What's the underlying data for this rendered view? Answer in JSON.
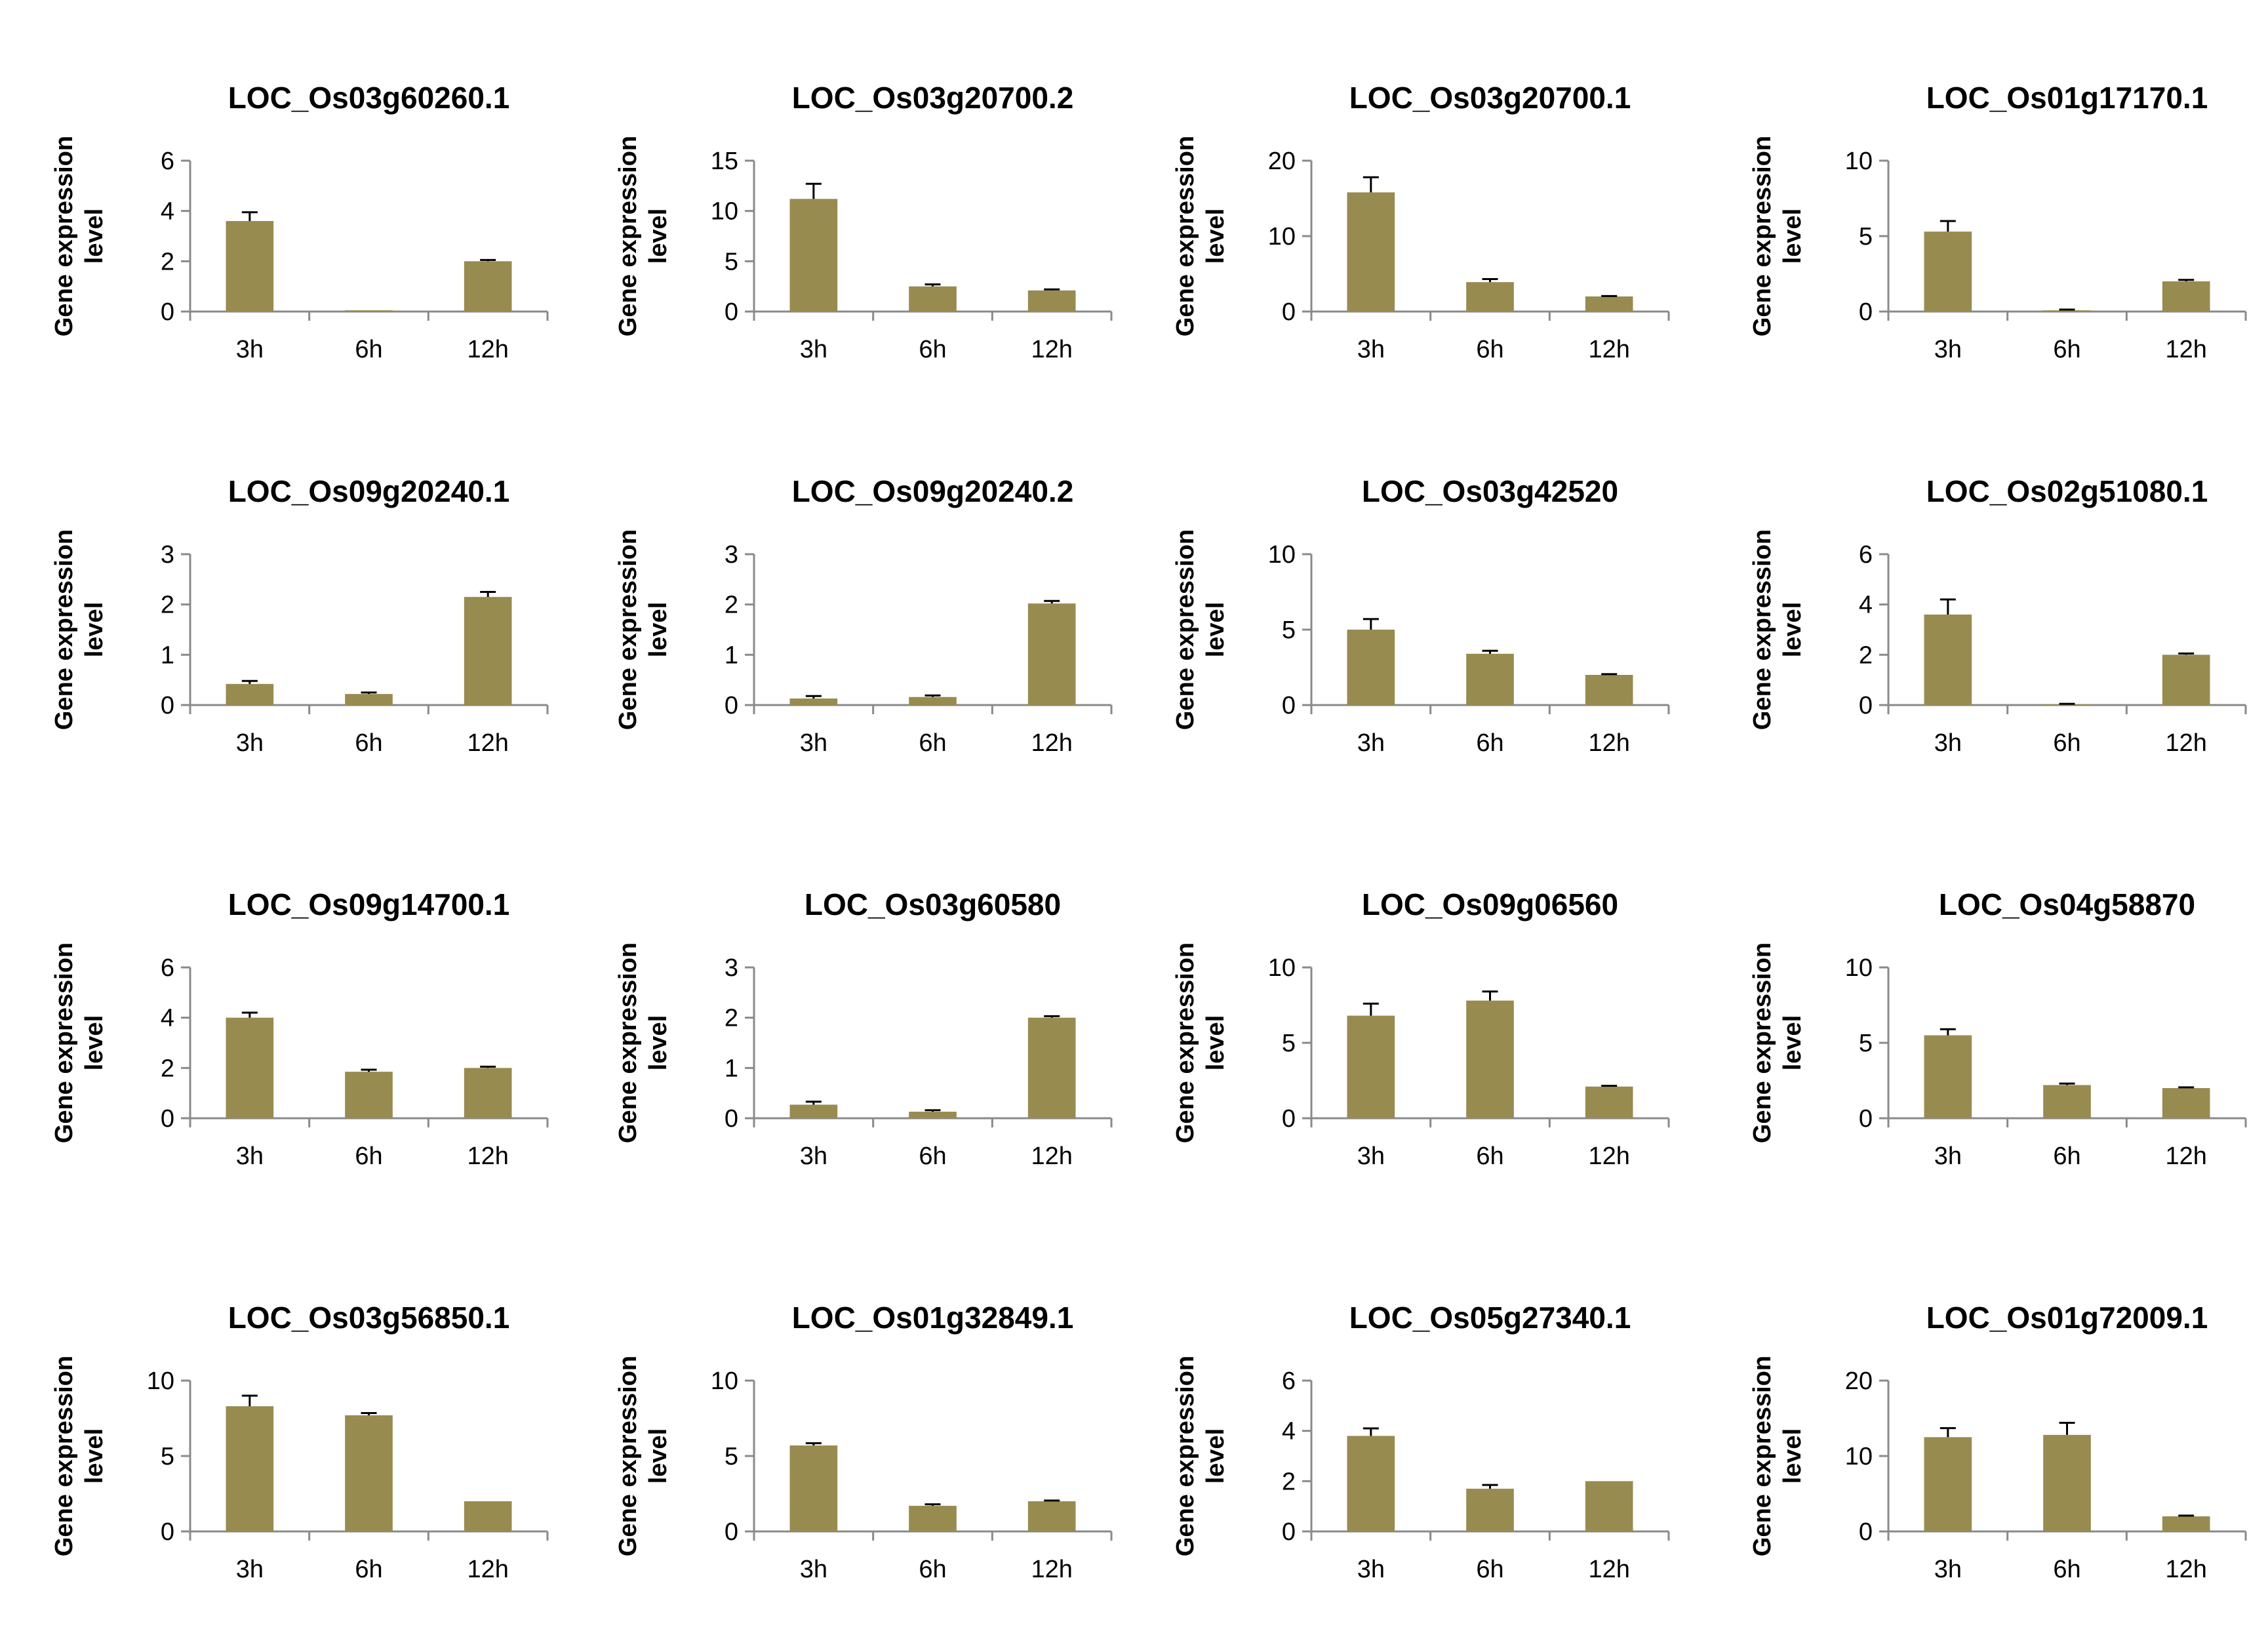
{
  "colors": {
    "bar": "#988B50",
    "axis": "#8a8a8a",
    "error": "#000000"
  },
  "chart_data": [
    {
      "type": "bar",
      "title": "LOC_Os03g60260.1",
      "ylabel": [
        "Gene expression",
        "level"
      ],
      "categories": [
        "3h",
        "6h",
        "12h"
      ],
      "values": [
        3.6,
        0.05,
        2.0
      ],
      "errors": [
        0.35,
        0,
        0.05
      ],
      "ylim": [
        0,
        6
      ],
      "yticks": [
        0,
        2,
        4,
        6
      ]
    },
    {
      "type": "bar",
      "title": "LOC_Os03g20700.2",
      "ylabel": [
        "Gene expression",
        "level"
      ],
      "categories": [
        "3h",
        "6h",
        "12h"
      ],
      "values": [
        11.2,
        2.5,
        2.1
      ],
      "errors": [
        1.5,
        0.2,
        0.1
      ],
      "ylim": [
        0,
        15
      ],
      "yticks": [
        0,
        5,
        10,
        15
      ]
    },
    {
      "type": "bar",
      "title": "LOC_Os03g20700.1",
      "ylabel": [
        "Gene expression",
        "level"
      ],
      "categories": [
        "3h",
        "6h",
        "12h"
      ],
      "values": [
        15.8,
        3.9,
        2.0
      ],
      "errors": [
        2.0,
        0.4,
        0.05
      ],
      "ylim": [
        0,
        20
      ],
      "yticks": [
        0,
        10,
        20
      ]
    },
    {
      "type": "bar",
      "title": "LOC_Os01g17170.1",
      "ylabel": [
        "Gene expression",
        "level"
      ],
      "categories": [
        "3h",
        "6h",
        "12h"
      ],
      "values": [
        5.3,
        0.08,
        2.0
      ],
      "errors": [
        0.7,
        0.05,
        0.1
      ],
      "ylim": [
        0,
        10
      ],
      "yticks": [
        0,
        5,
        10
      ]
    },
    {
      "type": "bar",
      "title": "LOC_Os09g20240.1",
      "ylabel": [
        "Gene expression",
        "level"
      ],
      "categories": [
        "3h",
        "6h",
        "12h"
      ],
      "values": [
        0.42,
        0.22,
        2.15
      ],
      "errors": [
        0.06,
        0.03,
        0.1
      ],
      "ylim": [
        0,
        3
      ],
      "yticks": [
        0,
        1,
        2,
        3
      ]
    },
    {
      "type": "bar",
      "title": "LOC_Os09g20240.2",
      "ylabel": [
        "Gene expression",
        "level"
      ],
      "categories": [
        "3h",
        "6h",
        "12h"
      ],
      "values": [
        0.13,
        0.16,
        2.02
      ],
      "errors": [
        0.05,
        0.03,
        0.05
      ],
      "ylim": [
        0,
        3
      ],
      "yticks": [
        0,
        1,
        2,
        3
      ]
    },
    {
      "type": "bar",
      "title": "LOC_Os03g42520",
      "ylabel": [
        "Gene expression",
        "level"
      ],
      "categories": [
        "3h",
        "6h",
        "12h"
      ],
      "values": [
        5.0,
        3.4,
        2.0
      ],
      "errors": [
        0.7,
        0.2,
        0.05
      ],
      "ylim": [
        0,
        10
      ],
      "yticks": [
        0,
        5,
        10
      ]
    },
    {
      "type": "bar",
      "title": "LOC_Os02g51080.1",
      "ylabel": [
        "Gene expression",
        "level"
      ],
      "categories": [
        "3h",
        "6h",
        "12h"
      ],
      "values": [
        3.6,
        0.03,
        2.0
      ],
      "errors": [
        0.6,
        0.02,
        0.05
      ],
      "ylim": [
        0,
        6
      ],
      "yticks": [
        0,
        2,
        4,
        6
      ]
    },
    {
      "type": "bar",
      "title": "LOC_Os09g14700.1",
      "ylabel": [
        "Gene expression",
        "level"
      ],
      "categories": [
        "3h",
        "6h",
        "12h"
      ],
      "values": [
        4.0,
        1.85,
        2.0
      ],
      "errors": [
        0.2,
        0.08,
        0.05
      ],
      "ylim": [
        0,
        6
      ],
      "yticks": [
        0,
        2,
        4,
        6
      ]
    },
    {
      "type": "bar",
      "title": "LOC_Os03g60580",
      "ylabel": [
        "Gene expression",
        "level"
      ],
      "categories": [
        "3h",
        "6h",
        "12h"
      ],
      "values": [
        0.27,
        0.13,
        2.0
      ],
      "errors": [
        0.06,
        0.03,
        0.03
      ],
      "ylim": [
        0,
        3
      ],
      "yticks": [
        0,
        1,
        2,
        3
      ]
    },
    {
      "type": "bar",
      "title": "LOC_Os09g06560",
      "ylabel": [
        "Gene expression",
        "level"
      ],
      "categories": [
        "3h",
        "6h",
        "12h"
      ],
      "values": [
        6.8,
        7.8,
        2.1
      ],
      "errors": [
        0.8,
        0.6,
        0.05
      ],
      "ylim": [
        0,
        10
      ],
      "yticks": [
        0,
        5,
        10
      ]
    },
    {
      "type": "bar",
      "title": "LOC_Os04g58870",
      "ylabel": [
        "Gene expression",
        "level"
      ],
      "categories": [
        "3h",
        "6h",
        "12h"
      ],
      "values": [
        5.5,
        2.2,
        2.0
      ],
      "errors": [
        0.4,
        0.1,
        0.05
      ],
      "ylim": [
        0,
        10
      ],
      "yticks": [
        0,
        5,
        10
      ]
    },
    {
      "type": "bar",
      "title": "LOC_Os03g56850.1",
      "ylabel": [
        "Gene expression",
        "level"
      ],
      "categories": [
        "3h",
        "6h",
        "12h"
      ],
      "values": [
        8.3,
        7.7,
        2.0
      ],
      "errors": [
        0.7,
        0.15,
        0.0
      ],
      "ylim": [
        0,
        10
      ],
      "yticks": [
        0,
        5,
        10
      ]
    },
    {
      "type": "bar",
      "title": "LOC_Os01g32849.1",
      "ylabel": [
        "Gene expression",
        "level"
      ],
      "categories": [
        "3h",
        "6h",
        "12h"
      ],
      "values": [
        5.7,
        1.7,
        2.0
      ],
      "errors": [
        0.15,
        0.1,
        0.05
      ],
      "ylim": [
        0,
        10
      ],
      "yticks": [
        0,
        5,
        10
      ]
    },
    {
      "type": "bar",
      "title": "LOC_Os05g27340.1",
      "ylabel": [
        "Gene expression",
        "level"
      ],
      "categories": [
        "3h",
        "6h",
        "12h"
      ],
      "values": [
        3.8,
        1.7,
        2.0
      ],
      "errors": [
        0.3,
        0.15,
        0.0
      ],
      "ylim": [
        0,
        6
      ],
      "yticks": [
        0,
        2,
        4,
        6
      ]
    },
    {
      "type": "bar",
      "title": "LOC_Os01g72009.1",
      "ylabel": [
        "Gene expression",
        "level"
      ],
      "categories": [
        "3h",
        "6h",
        "12h"
      ],
      "values": [
        12.5,
        12.8,
        2.0
      ],
      "errors": [
        1.2,
        1.6,
        0.1
      ],
      "ylim": [
        0,
        20
      ],
      "yticks": [
        0,
        10,
        20
      ]
    }
  ]
}
